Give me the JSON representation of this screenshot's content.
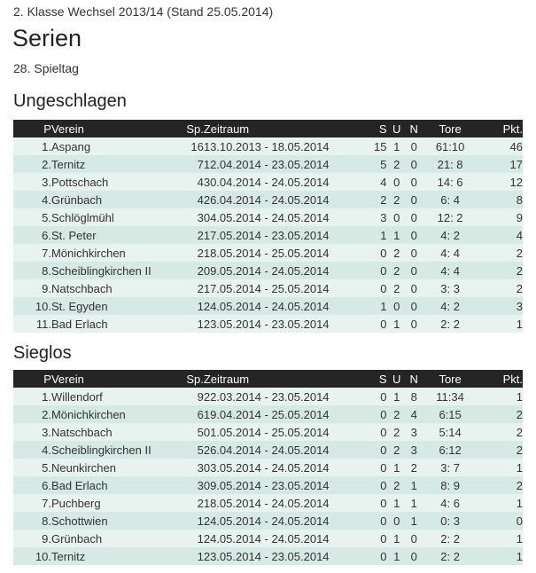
{
  "header": {
    "subtitle": "2. Klasse Wechsel 2013/14 (Stand 25.05.2014)",
    "title": "Serien",
    "round": "28. Spieltag"
  },
  "columns": {
    "p": "P",
    "verein": "Verein",
    "sp": "Sp.",
    "zeitraum": "Zeitraum",
    "s": "S",
    "u": "U",
    "n": "N",
    "tore": "Tore",
    "pkt": "Pkt."
  },
  "colors": {
    "header_bg": "#252525",
    "row_light": "#e8f2ee",
    "row_dark": "#d6e9e4"
  },
  "sections": [
    {
      "title": "Ungeschlagen",
      "rows": [
        {
          "p": "1.",
          "verein": "Aspang",
          "sp": "16",
          "zeitraum": "13.10.2013 - 18.05.2014",
          "s": "15",
          "u": "1",
          "n": "0",
          "tore": "61:10",
          "pkt": "46"
        },
        {
          "p": "2.",
          "verein": "Ternitz",
          "sp": "7",
          "zeitraum": "12.04.2014 - 23.05.2014",
          "s": "5",
          "u": "2",
          "n": "0",
          "tore": "21: 8",
          "pkt": "17"
        },
        {
          "p": "3.",
          "verein": "Pottschach",
          "sp": "4",
          "zeitraum": "30.04.2014 - 24.05.2014",
          "s": "4",
          "u": "0",
          "n": "0",
          "tore": "14: 6",
          "pkt": "12"
        },
        {
          "p": "4.",
          "verein": "Grünbach",
          "sp": "4",
          "zeitraum": "26.04.2014 - 24.05.2014",
          "s": "2",
          "u": "2",
          "n": "0",
          "tore": "6: 4",
          "pkt": "8"
        },
        {
          "p": "5.",
          "verein": "Schlöglmühl",
          "sp": "3",
          "zeitraum": "04.05.2014 - 24.05.2014",
          "s": "3",
          "u": "0",
          "n": "0",
          "tore": "12: 2",
          "pkt": "9"
        },
        {
          "p": "6.",
          "verein": "St. Peter",
          "sp": "2",
          "zeitraum": "17.05.2014 - 23.05.2014",
          "s": "1",
          "u": "1",
          "n": "0",
          "tore": "4: 2",
          "pkt": "4"
        },
        {
          "p": "7.",
          "verein": "Mönichkirchen",
          "sp": "2",
          "zeitraum": "18.05.2014 - 25.05.2014",
          "s": "0",
          "u": "2",
          "n": "0",
          "tore": "4: 4",
          "pkt": "2"
        },
        {
          "p": "8.",
          "verein": "Scheiblingkirchen II",
          "sp": "2",
          "zeitraum": "09.05.2014 - 24.05.2014",
          "s": "0",
          "u": "2",
          "n": "0",
          "tore": "4: 4",
          "pkt": "2"
        },
        {
          "p": "9.",
          "verein": "Natschbach",
          "sp": "2",
          "zeitraum": "17.05.2014 - 25.05.2014",
          "s": "0",
          "u": "2",
          "n": "0",
          "tore": "3: 3",
          "pkt": "2"
        },
        {
          "p": "10.",
          "verein": "St. Egyden",
          "sp": "1",
          "zeitraum": "24.05.2014 - 24.05.2014",
          "s": "1",
          "u": "0",
          "n": "0",
          "tore": "4: 2",
          "pkt": "3"
        },
        {
          "p": "11.",
          "verein": "Bad Erlach",
          "sp": "1",
          "zeitraum": "23.05.2014 - 23.05.2014",
          "s": "0",
          "u": "1",
          "n": "0",
          "tore": "2: 2",
          "pkt": "1"
        }
      ]
    },
    {
      "title": "Sieglos",
      "rows": [
        {
          "p": "1.",
          "verein": "Willendorf",
          "sp": "9",
          "zeitraum": "22.03.2014 - 23.05.2014",
          "s": "0",
          "u": "1",
          "n": "8",
          "tore": "11:34",
          "pkt": "1"
        },
        {
          "p": "2.",
          "verein": "Mönichkirchen",
          "sp": "6",
          "zeitraum": "19.04.2014 - 25.05.2014",
          "s": "0",
          "u": "2",
          "n": "4",
          "tore": "6:15",
          "pkt": "2"
        },
        {
          "p": "3.",
          "verein": "Natschbach",
          "sp": "5",
          "zeitraum": "01.05.2014 - 25.05.2014",
          "s": "0",
          "u": "2",
          "n": "3",
          "tore": "5:14",
          "pkt": "2"
        },
        {
          "p": "4.",
          "verein": "Scheiblingkirchen II",
          "sp": "5",
          "zeitraum": "26.04.2014 - 24.05.2014",
          "s": "0",
          "u": "2",
          "n": "3",
          "tore": "6:12",
          "pkt": "2"
        },
        {
          "p": "5.",
          "verein": "Neunkirchen",
          "sp": "3",
          "zeitraum": "03.05.2014 - 24.05.2014",
          "s": "0",
          "u": "1",
          "n": "2",
          "tore": "3: 7",
          "pkt": "1"
        },
        {
          "p": "6.",
          "verein": "Bad Erlach",
          "sp": "3",
          "zeitraum": "09.05.2014 - 23.05.2014",
          "s": "0",
          "u": "2",
          "n": "1",
          "tore": "8: 9",
          "pkt": "2"
        },
        {
          "p": "7.",
          "verein": "Puchberg",
          "sp": "2",
          "zeitraum": "18.05.2014 - 24.05.2014",
          "s": "0",
          "u": "1",
          "n": "1",
          "tore": "4: 6",
          "pkt": "1"
        },
        {
          "p": "8.",
          "verein": "Schottwien",
          "sp": "1",
          "zeitraum": "24.05.2014 - 24.05.2014",
          "s": "0",
          "u": "0",
          "n": "1",
          "tore": "0: 3",
          "pkt": "0"
        },
        {
          "p": "9.",
          "verein": "Grünbach",
          "sp": "1",
          "zeitraum": "24.05.2014 - 24.05.2014",
          "s": "0",
          "u": "1",
          "n": "0",
          "tore": "2: 2",
          "pkt": "1"
        },
        {
          "p": "10.",
          "verein": "Ternitz",
          "sp": "1",
          "zeitraum": "23.05.2014 - 23.05.2014",
          "s": "0",
          "u": "1",
          "n": "0",
          "tore": "2: 2",
          "pkt": "1"
        }
      ]
    }
  ]
}
